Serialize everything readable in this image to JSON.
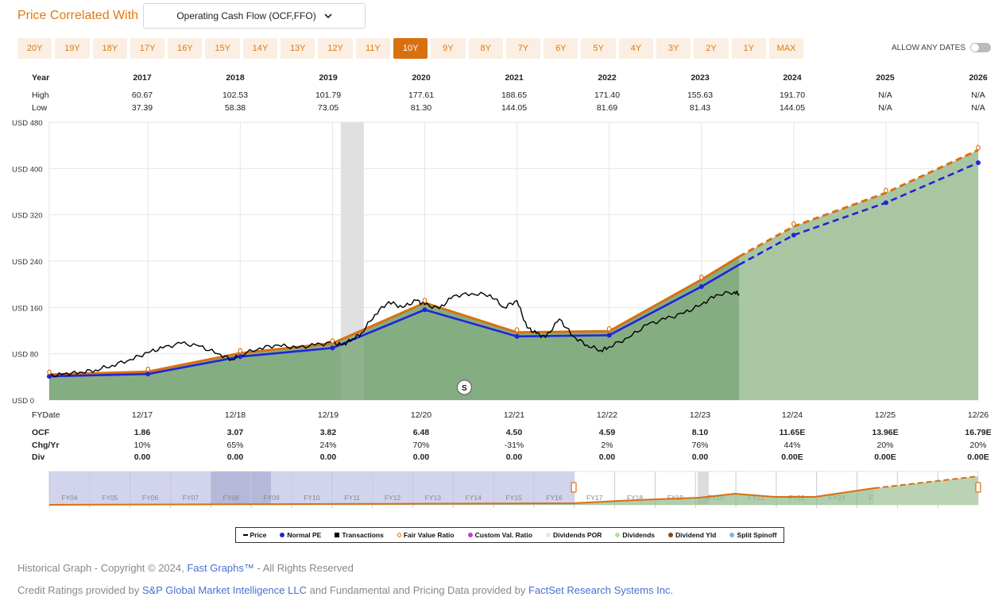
{
  "header": {
    "title": "Price Correlated With",
    "dropdown_value": "Operating Cash Flow (OCF,FFO)"
  },
  "ranges": [
    "20Y",
    "19Y",
    "18Y",
    "17Y",
    "16Y",
    "15Y",
    "14Y",
    "13Y",
    "12Y",
    "11Y",
    "10Y",
    "9Y",
    "8Y",
    "7Y",
    "6Y",
    "5Y",
    "4Y",
    "3Y",
    "2Y",
    "1Y",
    "MAX"
  ],
  "active_range": "10Y",
  "allow_any_dates": {
    "label": "ALLOW ANY DATES",
    "enabled": false
  },
  "year_table": {
    "labels": {
      "year": "Year",
      "high": "High",
      "low": "Low"
    },
    "years": [
      "2017",
      "2018",
      "2019",
      "2020",
      "2021",
      "2022",
      "2023",
      "2024",
      "2025",
      "2026"
    ],
    "high": [
      "60.67",
      "102.53",
      "101.79",
      "177.61",
      "188.65",
      "171.40",
      "155.63",
      "191.70",
      "N/A",
      "N/A"
    ],
    "low": [
      "37.39",
      "58.38",
      "73.05",
      "81.30",
      "144.05",
      "81.69",
      "81.43",
      "144.05",
      "N/A",
      "N/A"
    ]
  },
  "bottom_table": {
    "labels": {
      "fydate": "FYDate",
      "ocf": "OCF",
      "chg": "Chg/Yr",
      "div": "Div"
    },
    "dates": [
      "12/17",
      "12/18",
      "12/19",
      "12/20",
      "12/21",
      "12/22",
      "12/23",
      "12/24",
      "12/25",
      "12/26"
    ],
    "ocf": [
      "1.86",
      "3.07",
      "3.82",
      "6.48",
      "4.50",
      "4.59",
      "8.10",
      "11.65E",
      "13.96E",
      "16.79E"
    ],
    "chg": [
      "10%",
      "65%",
      "24%",
      "70%",
      "-31%",
      "2%",
      "76%",
      "44%",
      "20%",
      "20%"
    ],
    "div": [
      "0.00",
      "0.00",
      "0.00",
      "0.00",
      "0.00",
      "0.00",
      "0.00",
      "0.00E",
      "0.00E",
      "0.00E"
    ]
  },
  "chart_data": {
    "type": "line",
    "ylabel_prefix": "USD",
    "y_ticks": [
      0,
      80,
      160,
      240,
      320,
      400,
      480
    ],
    "ylim": [
      0,
      480
    ],
    "x_range": [
      2016.92,
      2026.99
    ],
    "grid": true,
    "recession_band": [
      2020.08,
      2020.33
    ],
    "series": [
      {
        "name": "Normal PE",
        "color": "#2323d8",
        "points": [
          [
            2016.92,
            41
          ],
          [
            2017.99,
            45
          ],
          [
            2018.99,
            75
          ],
          [
            2019.99,
            90
          ],
          [
            2020.99,
            156
          ],
          [
            2021.99,
            110
          ],
          [
            2022.99,
            112
          ],
          [
            2023.99,
            196
          ],
          [
            2024.4,
            234
          ]
        ],
        "projected": [
          [
            2024.4,
            234
          ],
          [
            2024.99,
            285
          ],
          [
            2025.99,
            341
          ],
          [
            2026.99,
            410
          ]
        ]
      },
      {
        "name": "Fair Value Ratio",
        "color": "#d9700f",
        "points": [
          [
            2016.92,
            44
          ],
          [
            2017.99,
            49
          ],
          [
            2018.99,
            81
          ],
          [
            2019.99,
            98
          ],
          [
            2020.99,
            168
          ],
          [
            2021.99,
            117
          ],
          [
            2022.99,
            119
          ],
          [
            2023.99,
            208
          ],
          [
            2024.4,
            248
          ]
        ],
        "projected": [
          [
            2024.4,
            248
          ],
          [
            2024.99,
            300
          ],
          [
            2025.99,
            358
          ],
          [
            2026.99,
            432
          ]
        ]
      },
      {
        "name": "Price",
        "color": "#000000",
        "points": [
          [
            2016.92,
            41
          ],
          [
            2017.08,
            45
          ],
          [
            2017.25,
            48
          ],
          [
            2017.42,
            52
          ],
          [
            2017.6,
            60
          ],
          [
            2017.8,
            70
          ],
          [
            2017.99,
            82
          ],
          [
            2018.15,
            90
          ],
          [
            2018.35,
            98
          ],
          [
            2018.55,
            93
          ],
          [
            2018.75,
            80
          ],
          [
            2018.9,
            70
          ],
          [
            2018.99,
            78
          ],
          [
            2019.2,
            90
          ],
          [
            2019.4,
            95
          ],
          [
            2019.6,
            90
          ],
          [
            2019.8,
            95
          ],
          [
            2019.99,
            99
          ],
          [
            2020.1,
            95
          ],
          [
            2020.2,
            105
          ],
          [
            2020.3,
            115
          ],
          [
            2020.45,
            148
          ],
          [
            2020.6,
            170
          ],
          [
            2020.75,
            160
          ],
          [
            2020.9,
            172
          ],
          [
            2020.99,
            165
          ],
          [
            2021.15,
            158
          ],
          [
            2021.3,
            180
          ],
          [
            2021.5,
            184
          ],
          [
            2021.7,
            182
          ],
          [
            2021.85,
            160
          ],
          [
            2021.99,
            172
          ],
          [
            2022.1,
            125
          ],
          [
            2022.2,
            115
          ],
          [
            2022.3,
            108
          ],
          [
            2022.45,
            140
          ],
          [
            2022.6,
            110
          ],
          [
            2022.75,
            95
          ],
          [
            2022.9,
            86
          ],
          [
            2022.99,
            92
          ],
          [
            2023.2,
            108
          ],
          [
            2023.4,
            130
          ],
          [
            2023.6,
            140
          ],
          [
            2023.8,
            150
          ],
          [
            2023.99,
            165
          ],
          [
            2024.15,
            182
          ],
          [
            2024.35,
            187
          ],
          [
            2024.4,
            183
          ]
        ]
      }
    ],
    "dividend_marker": {
      "label": "S",
      "x": 2021.42
    },
    "overview_labels": [
      "FY04",
      "FY05",
      "FY06",
      "FY07",
      "FY08",
      "FY09",
      "FY10",
      "FY11",
      "FY12",
      "FY13",
      "FY14",
      "FY15",
      "FY16",
      "FY17",
      "FY18",
      "FY19",
      "FY20",
      "FY21",
      "FY22",
      "FY23",
      "FY24",
      "FY25",
      "FY26"
    ]
  },
  "legend": [
    {
      "label": "Price",
      "color": "#000000",
      "marker": "line"
    },
    {
      "label": "Normal PE",
      "color": "#2323d8",
      "marker": "dot"
    },
    {
      "label": "Transactions",
      "color": "#000000",
      "marker": "square"
    },
    {
      "label": "Fair Value Ratio",
      "color": "#d9700f",
      "marker": "ring"
    },
    {
      "label": "Custom Val. Ratio",
      "color": "#c03ed0",
      "marker": "dot"
    },
    {
      "label": "Dividends POR",
      "color": "#dfeed8",
      "marker": "dot"
    },
    {
      "label": "Dividends",
      "color": "#b2df98",
      "marker": "dot"
    },
    {
      "label": "Dividend Yld",
      "color": "#8b4513",
      "marker": "dot"
    },
    {
      "label": "Split Spinoff",
      "color": "#90aee0",
      "marker": "dot"
    }
  ],
  "footer": {
    "line1_prefix": "Historical Graph - Copyright © 2024,",
    "line1_link": "Fast Graphs™",
    "line1_suffix": "- All Rights Reserved",
    "line2_prefix": "Credit Ratings provided by",
    "line2_link1": "S&P Global Market Intelligence LLC",
    "line2_mid": "and Fundamental and Pricing Data provided by",
    "line2_link2": "FactSet Research Systems Inc."
  }
}
